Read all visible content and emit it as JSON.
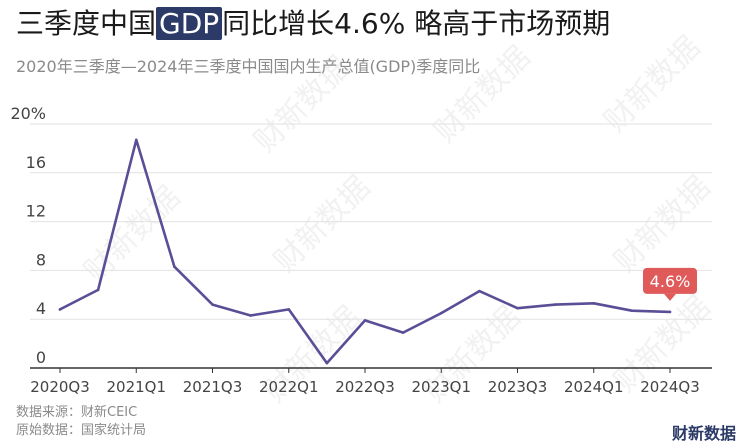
{
  "title": {
    "before": "三季度中国",
    "highlight": "GDP",
    "after": "同比增长4.6% 略高于市场预期"
  },
  "subtitle": "2020年三季度—2024年三季度中国国内生产总值(GDP)季度同比",
  "source": {
    "line1": "数据来源：财新CEIC",
    "line2": "原始数据：国家统计局"
  },
  "brand": "财新数据",
  "watermark": "财新数据",
  "colors": {
    "line": "#5b4e96",
    "callout": "#e05a5a",
    "highlight_bg": "#2b3a67",
    "grid": "#e2e2e2",
    "axis": "#333333"
  },
  "chart_data": {
    "type": "line",
    "title": "三季度中国GDP同比增长4.6% 略高于市场预期",
    "subtitle": "2020年三季度—2024年三季度中国国内生产总值(GDP)季度同比",
    "x": [
      "2020Q3",
      "2020Q4",
      "2021Q1",
      "2021Q2",
      "2021Q3",
      "2021Q4",
      "2022Q1",
      "2022Q2",
      "2022Q3",
      "2022Q4",
      "2023Q1",
      "2023Q2",
      "2023Q3",
      "2023Q4",
      "2024Q1",
      "2024Q2",
      "2024Q3"
    ],
    "x_tick_labels": [
      "2020Q3",
      "2021Q1",
      "2021Q3",
      "2022Q1",
      "2022Q3",
      "2023Q1",
      "2023Q3",
      "2024Q1",
      "2024Q3"
    ],
    "series": [
      {
        "values": [
          4.8,
          6.4,
          18.7,
          8.3,
          5.2,
          4.3,
          4.8,
          0.4,
          3.9,
          2.9,
          4.5,
          6.3,
          4.9,
          5.2,
          5.3,
          4.7,
          4.6
        ]
      }
    ],
    "y_ticks": [
      0,
      4,
      8,
      12,
      16,
      20
    ],
    "y_tick_labels": [
      "0",
      "4",
      "8",
      "12",
      "16",
      "20%"
    ],
    "ylim": [
      0,
      20
    ],
    "grid": "horizontal",
    "annotation": {
      "x": "2024Q3",
      "label": "4.6%"
    }
  }
}
